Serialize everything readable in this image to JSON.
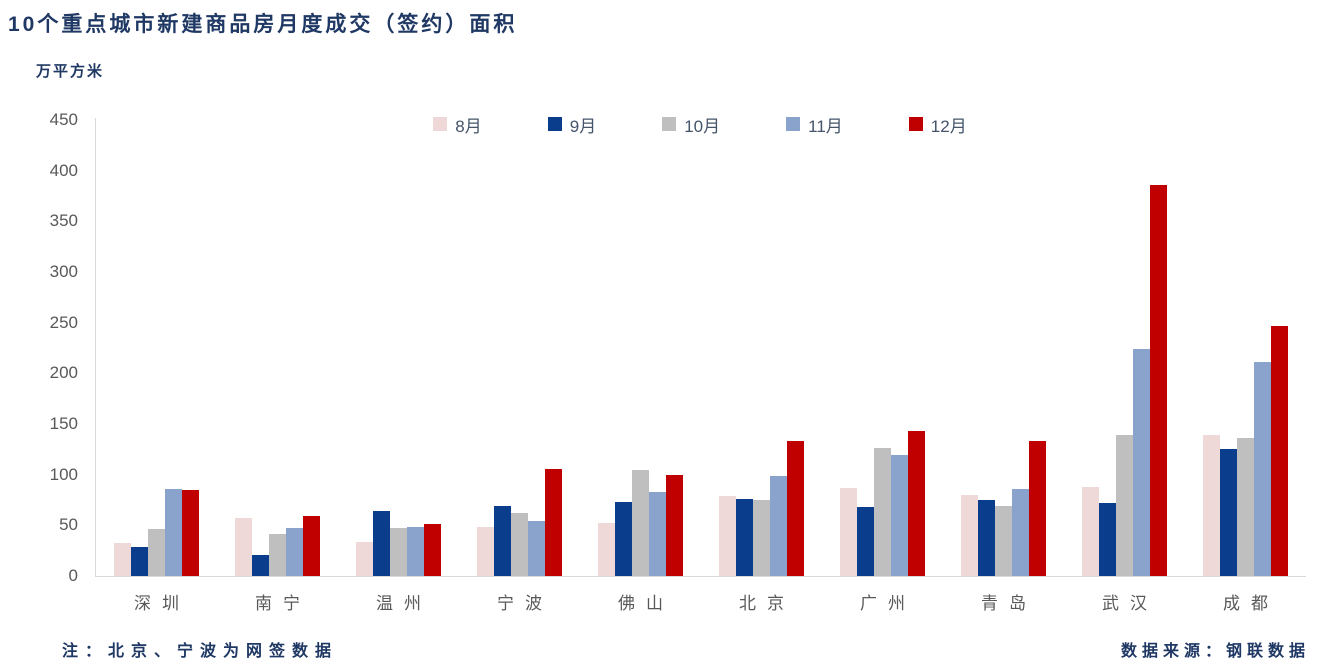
{
  "title": "10个重点城市新建商品房月度成交（签约）面积",
  "unit_label": "万平方米",
  "footnote": "注：北京、宁波为网签数据",
  "source": "数据来源：钢联数据",
  "colors": {
    "title_text": "#1f3864",
    "axis_text": "#595959",
    "axis_line": "#d9d9d9",
    "legend_text": "#44546a"
  },
  "chart_data": {
    "type": "bar",
    "title": "10个重点城市新建商品房月度成交（签约）面积",
    "xlabel": "",
    "ylabel": "万平方米",
    "ylim": [
      0,
      450
    ],
    "ytick_step": 50,
    "grid": false,
    "legend_position": "top",
    "categories": [
      "深圳",
      "南宁",
      "温州",
      "宁波",
      "佛山",
      "北京",
      "广州",
      "青岛",
      "武汉",
      "成都"
    ],
    "series": [
      {
        "name": "8月",
        "color": "#eed8d8",
        "values": [
          33,
          57,
          34,
          48,
          52,
          79,
          87,
          80,
          88,
          139
        ]
      },
      {
        "name": "9月",
        "color": "#0a3d8c",
        "values": [
          29,
          21,
          64,
          69,
          73,
          76,
          68,
          75,
          72,
          125
        ]
      },
      {
        "name": "10月",
        "color": "#bfbfbf",
        "values": [
          46,
          41,
          47,
          62,
          105,
          75,
          126,
          69,
          139,
          136
        ]
      },
      {
        "name": "11月",
        "color": "#8aa3cd",
        "values": [
          86,
          47,
          48,
          54,
          83,
          99,
          119,
          86,
          224,
          211
        ]
      },
      {
        "name": "12月",
        "color": "#c00000",
        "values": [
          85,
          59,
          51,
          106,
          100,
          133,
          143,
          133,
          386,
          247
        ]
      }
    ]
  }
}
